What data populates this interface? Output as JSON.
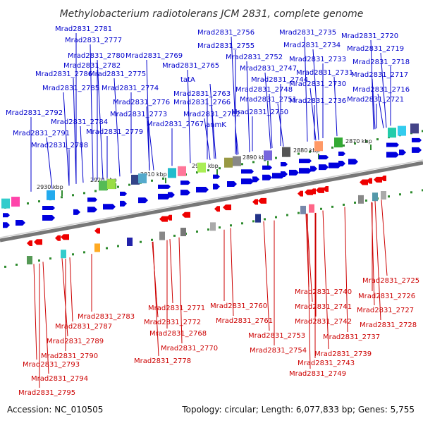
{
  "title": "Methylobacterium radiotolerans JCM 2831, complete genome",
  "footer": {
    "accession": "Accession: NC_010505",
    "topology": "Topology: circular; Length: 6,077,833 bp; Genes: 5,755"
  },
  "kbp_ticks": [
    "2930 kbp",
    "2920 kbp",
    "2910 kbp",
    "2900 kbp",
    "2890 kbp",
    "2880 kbp",
    "2870 kbp"
  ],
  "forward_labels": [
    "Mrad2831_2781",
    "Mrad2831_2777",
    "Mrad2831_2780",
    "Mrad2831_2782",
    "Mrad2831_2786",
    "Mrad2831_2785",
    "Mrad2831_2792",
    "Mrad2831_2784",
    "Mrad2831_2791",
    "Mrad2831_2788",
    "Mrad2831_2769",
    "Mrad2831_2775",
    "Mrad2831_2774",
    "Mrad2831_2776",
    "Mrad2831_2773",
    "Mrad2831_2779",
    "Mrad2831_2765",
    "tatA",
    "Mrad2831_2763",
    "Mrad2831_2766",
    "Mrad2831_2762",
    "Mrad2831_2767",
    "anmK",
    "Mrad2831_2756",
    "Mrad2831_2755",
    "Mrad2831_2752",
    "Mrad2831_2747",
    "Mrad2831_2744",
    "Mrad2831_2748",
    "Mrad2831_2751",
    "Mrad2831_2750",
    "Mrad2831_2735",
    "Mrad2831_2734",
    "Mrad2831_2733",
    "Mrad2831_2731",
    "Mrad2831_2730",
    "Mrad2831_2736",
    "Mrad2831_2720",
    "Mrad2831_2719",
    "Mrad2831_2718",
    "Mrad2831_2717",
    "Mrad2831_2716",
    "Mrad2831_2721"
  ],
  "reverse_labels": [
    "Mrad2831_2783",
    "Mrad2831_2787",
    "Mrad2831_2789",
    "Mrad2831_2790",
    "Mrad2831_2793",
    "Mrad2831_2794",
    "Mrad2831_2795",
    "Mrad2831_2771",
    "Mrad2831_2772",
    "Mrad2831_2768",
    "Mrad2831_2770",
    "Mrad2831_2778",
    "Mrad2831_2760",
    "Mrad2831_2761",
    "Mrad2831_2753",
    "Mrad2831_2754",
    "Mrad2831_2740",
    "Mrad2831_2741",
    "Mrad2831_2742",
    "Mrad2831_2737",
    "Mrad2831_2739",
    "Mrad2831_2743",
    "Mrad2831_2749",
    "Mrad2831_2725",
    "Mrad2831_2726",
    "Mrad2831_2727",
    "Mrad2831_2728"
  ],
  "colors": {
    "forward": "#0000dd",
    "reverse": "#ee0000",
    "forward_label": "#0000cc",
    "reverse_label": "#cc0000",
    "backbone": "#888888",
    "tick": "#2e8b2e"
  }
}
